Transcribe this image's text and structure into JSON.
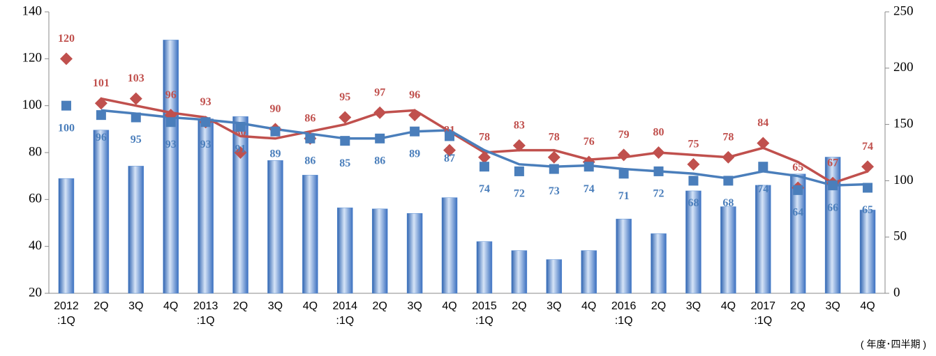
{
  "chart_data": {
    "type": "combo",
    "categories": [
      "2012\n:1Q",
      "2Q",
      "3Q",
      "4Q",
      "2013\n:1Q",
      "2Q",
      "3Q",
      "4Q",
      "2014\n:1Q",
      "2Q",
      "3Q",
      "4Q",
      "2015\n:1Q",
      "2Q",
      "3Q",
      "4Q",
      "2016\n:1Q",
      "2Q",
      "3Q",
      "4Q",
      "2017\n:1Q",
      "2Q",
      "3Q",
      "4Q"
    ],
    "xlabel": "( 年度･四半期 )",
    "ylim": [
      20,
      140
    ],
    "yticks": [
      20,
      40,
      60,
      80,
      100,
      120,
      140
    ],
    "y2lim": [
      0,
      250
    ],
    "y2ticks": [
      0,
      50,
      100,
      150,
      200,
      250
    ],
    "series": [
      {
        "kind": "bar",
        "axis": "y2",
        "color": "#5b8fd3",
        "values": [
          102,
          145,
          113,
          225,
          155,
          157,
          118,
          105,
          76,
          75,
          71,
          85,
          46,
          38,
          30,
          38,
          66,
          53,
          91,
          77,
          96,
          106,
          121,
          74
        ]
      },
      {
        "kind": "line",
        "color": "#c0504d",
        "values": [
          null,
          103,
          100,
          97,
          95,
          87,
          86,
          89,
          92,
          97,
          98,
          89,
          80,
          81,
          81,
          77,
          78,
          80,
          79,
          78,
          82,
          76,
          67,
          72
        ]
      },
      {
        "kind": "line",
        "color": "#4a7ebb",
        "values": [
          null,
          98,
          96.6,
          95,
          94,
          92.5,
          90,
          88,
          86,
          86,
          89,
          89.5,
          81,
          75,
          74,
          74.5,
          73,
          72,
          71,
          69,
          72,
          70,
          66,
          66.5
        ]
      },
      {
        "kind": "marker",
        "shape": "diamond",
        "color": "#c0504d",
        "label_pos": "above",
        "values": [
          120,
          101,
          103,
          96,
          93,
          80,
          90,
          86,
          95,
          97,
          96,
          81,
          78,
          83,
          78,
          76,
          79,
          80,
          75,
          78,
          84,
          65,
          67,
          74
        ]
      },
      {
        "kind": "marker",
        "shape": "square",
        "color": "#4a7ebb",
        "label_pos": "below",
        "values": [
          100,
          96,
          95,
          93,
          93,
          91,
          89,
          86,
          85,
          86,
          89,
          87,
          74,
          72,
          73,
          74,
          71,
          72,
          68,
          68,
          74,
          64,
          66,
          65
        ]
      }
    ]
  }
}
